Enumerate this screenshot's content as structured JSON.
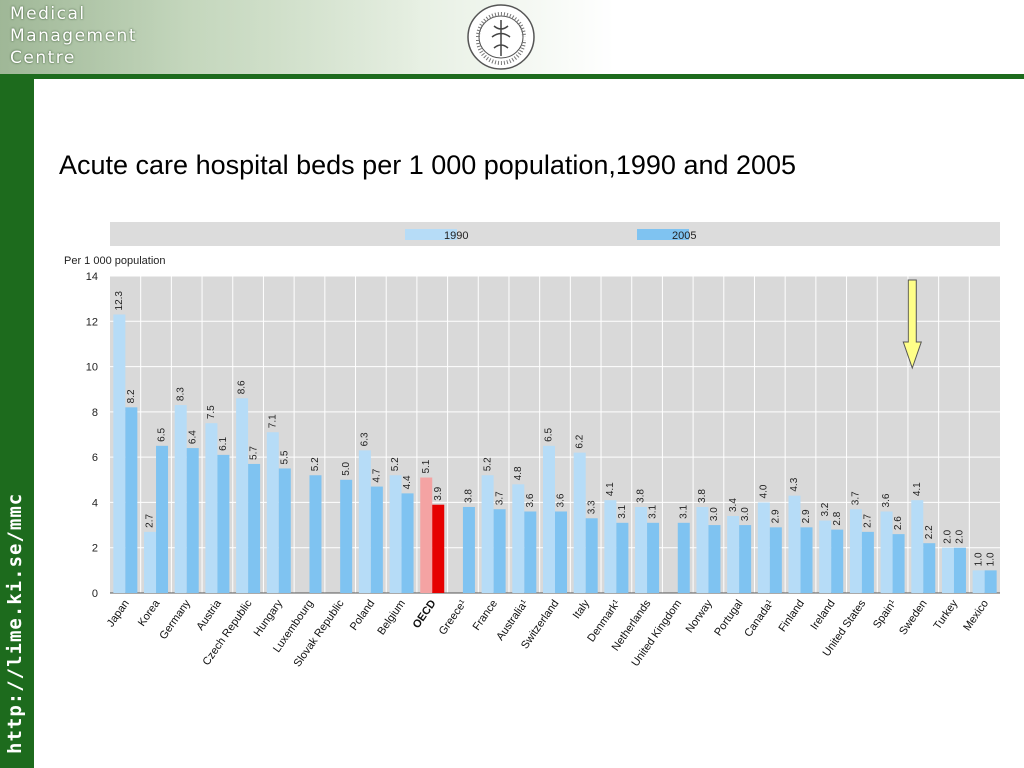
{
  "header": {
    "brand_lines": [
      "Medical",
      "Management",
      "Centre"
    ],
    "seal_text": "SKA MEDICO CHIRURGIC"
  },
  "sidebar": {
    "url": "http://lime.ki.se/mmc"
  },
  "slide": {
    "title": "Acute care hospital beds per 1 000 population,1990 and 2005"
  },
  "colors": {
    "series_1990": "#b6dcf7",
    "series_2005": "#7fc3f1",
    "oecd_1990": "#f4a3a3",
    "oecd_2005": "#e60000",
    "arrow_fill": "#ffff88",
    "accent_green": "#1d6b1d"
  },
  "chart_data": {
    "type": "bar",
    "ylabel": "Per 1 000 population",
    "ylim": [
      0,
      14
    ],
    "yticks": [
      0,
      2,
      4,
      6,
      8,
      10,
      12,
      14
    ],
    "grid": true,
    "legend_position": "top",
    "categories": [
      "Japan",
      "Korea",
      "Germany",
      "Austria",
      "Czech Republic",
      "Hungary",
      "Luxembourg",
      "Slovak Republic",
      "Poland",
      "Belgium",
      "OECD",
      "Greece¹",
      "France",
      "Australia¹",
      "Switzerland",
      "Italy",
      "Denmark¹",
      "Netherlands",
      "United Kingdom",
      "Norway",
      "Portugal",
      "Canada¹",
      "Finland",
      "Ireland",
      "United States",
      "Spain¹",
      "Sweden",
      "Turkey",
      "Mexico"
    ],
    "series": [
      {
        "name": "1990",
        "values": [
          12.3,
          2.7,
          8.3,
          7.5,
          8.6,
          7.1,
          null,
          null,
          6.3,
          5.2,
          5.1,
          null,
          5.2,
          4.8,
          6.5,
          6.2,
          4.1,
          3.8,
          null,
          3.8,
          3.4,
          4.0,
          4.3,
          3.2,
          3.7,
          3.6,
          4.1,
          2.0,
          1.0
        ]
      },
      {
        "name": "2005",
        "values": [
          8.2,
          6.5,
          6.4,
          6.1,
          5.7,
          5.5,
          5.2,
          5.0,
          4.7,
          4.4,
          3.9,
          3.8,
          3.7,
          3.6,
          3.6,
          3.3,
          3.1,
          3.1,
          3.1,
          3.0,
          3.0,
          2.9,
          2.9,
          2.8,
          2.7,
          2.6,
          2.2,
          2.0,
          1.0
        ]
      }
    ],
    "highlight_category": "OECD",
    "annotation": {
      "type": "arrow",
      "target": "Sweden",
      "direction": "down"
    }
  }
}
